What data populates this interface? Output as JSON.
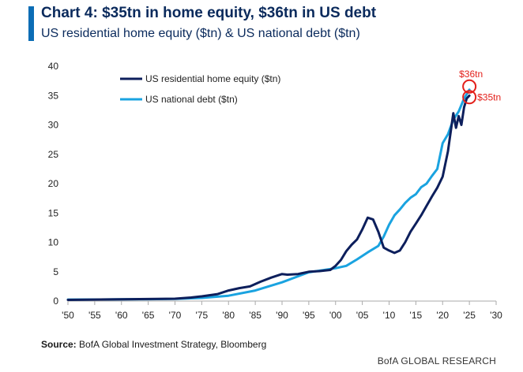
{
  "header": {
    "title": "Chart 4: $35tn in home equity, $36tn in US debt",
    "subtitle": "US residential home equity ($tn) & US national debt ($tn)"
  },
  "footer": {
    "source_label": "Source:",
    "source_text": "BofA Global Investment Strategy, Bloomberg",
    "brand": "BofA GLOBAL RESEARCH"
  },
  "colors": {
    "home_equity": "#0d1f5c",
    "national_debt": "#1aa3e0",
    "annotation": "#e3201b",
    "axis": "#aaaaaa"
  },
  "chart_data": {
    "type": "line",
    "xlim": [
      1950,
      2030
    ],
    "ylim": [
      0,
      40
    ],
    "y_ticks": [
      0,
      5,
      10,
      15,
      20,
      25,
      30,
      35,
      40
    ],
    "x_ticks": [
      1950,
      1955,
      1960,
      1965,
      1970,
      1975,
      1980,
      1985,
      1990,
      1995,
      2000,
      2005,
      2010,
      2015,
      2020,
      2025,
      2030
    ],
    "x_tick_labels": [
      "'50",
      "'55",
      "'60",
      "'65",
      "'70",
      "'75",
      "'80",
      "'85",
      "'90",
      "'95",
      "'00",
      "'05",
      "'10",
      "'15",
      "'20",
      "'25",
      "'30"
    ],
    "grid": false,
    "legend_position": "top-left",
    "series": [
      {
        "name": "US residential home equity ($tn)",
        "color_key": "home_equity",
        "x": [
          1950,
          1955,
          1960,
          1965,
          1970,
          1973,
          1975,
          1978,
          1980,
          1982,
          1984,
          1986,
          1988,
          1990,
          1991,
          1993,
          1995,
          1997,
          1999,
          2000,
          2001,
          2002,
          2003,
          2004,
          2005,
          2006,
          2007,
          2008,
          2009,
          2010,
          2011,
          2012,
          2013,
          2014,
          2015,
          2016,
          2017,
          2018,
          2019,
          2020,
          2021,
          2022,
          2022.5,
          2023,
          2023.5,
          2024,
          2024.5,
          2025
        ],
        "y": [
          0.2,
          0.25,
          0.3,
          0.35,
          0.4,
          0.6,
          0.8,
          1.2,
          1.8,
          2.2,
          2.5,
          3.3,
          4.0,
          4.6,
          4.5,
          4.6,
          5.0,
          5.1,
          5.3,
          6.0,
          7.0,
          8.5,
          9.6,
          10.5,
          12.2,
          14.2,
          13.9,
          11.8,
          9.1,
          8.6,
          8.2,
          8.6,
          10.0,
          11.8,
          13.2,
          14.6,
          16.2,
          17.8,
          19.3,
          21.2,
          25.5,
          32.0,
          29.5,
          31.5,
          30.0,
          33.0,
          34.5,
          35.0
        ]
      },
      {
        "name": "US national debt ($tn)",
        "color_key": "national_debt",
        "x": [
          1950,
          1955,
          1960,
          1965,
          1970,
          1975,
          1980,
          1985,
          1990,
          1995,
          2000,
          2002,
          2004,
          2006,
          2008,
          2009,
          2010,
          2011,
          2012,
          2013,
          2014,
          2015,
          2016,
          2017,
          2018,
          2019,
          2020,
          2021,
          2022,
          2023,
          2024,
          2025
        ],
        "y": [
          0.26,
          0.27,
          0.29,
          0.32,
          0.38,
          0.54,
          0.91,
          1.8,
          3.2,
          4.9,
          5.6,
          6.0,
          7.1,
          8.3,
          9.4,
          11.0,
          13.0,
          14.6,
          15.6,
          16.7,
          17.6,
          18.2,
          19.4,
          20.0,
          21.3,
          22.5,
          26.9,
          28.4,
          30.9,
          32.3,
          34.5,
          36.0
        ]
      }
    ],
    "annotations": [
      {
        "label": "$36tn",
        "x": 2025,
        "y": 36
      },
      {
        "label": "$35tn",
        "x": 2025,
        "y": 35
      }
    ]
  }
}
